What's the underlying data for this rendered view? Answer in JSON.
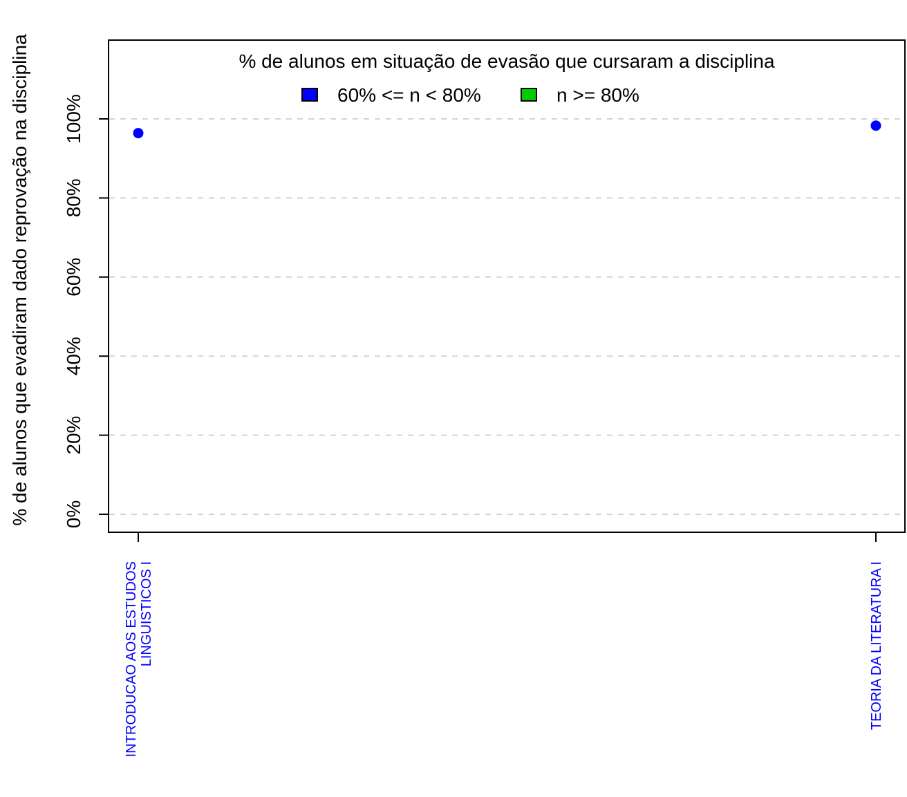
{
  "chart_data": {
    "type": "scatter",
    "ylabel": "% de alunos que evadiram dado reprovação na disciplina",
    "ylim": [
      0,
      1
    ],
    "yticks": [
      0,
      0.2,
      0.4,
      0.6,
      0.8,
      1.0
    ],
    "ytick_labels": [
      "0%",
      "20%",
      "40%",
      "60%",
      "80%",
      "100%"
    ],
    "grid": "horizontal dashed",
    "categories": [
      "INTRODUCAO AOS ESTUDOS\nLINGUISTICOS I",
      "TEORIA DA LITERATURA I"
    ],
    "category_label_color": "#0000ff",
    "values": [
      0.964,
      0.983
    ],
    "point_colors": [
      "#0000ff",
      "#0000ff"
    ],
    "legend": {
      "title": "% de alunos em situação de evasão que cursaram a disciplina",
      "placement": "top",
      "entries": [
        {
          "label": "60% <= n < 80%",
          "color": "#0000ff"
        },
        {
          "label": "n >= 80%",
          "color": "#00cc00"
        }
      ]
    }
  }
}
